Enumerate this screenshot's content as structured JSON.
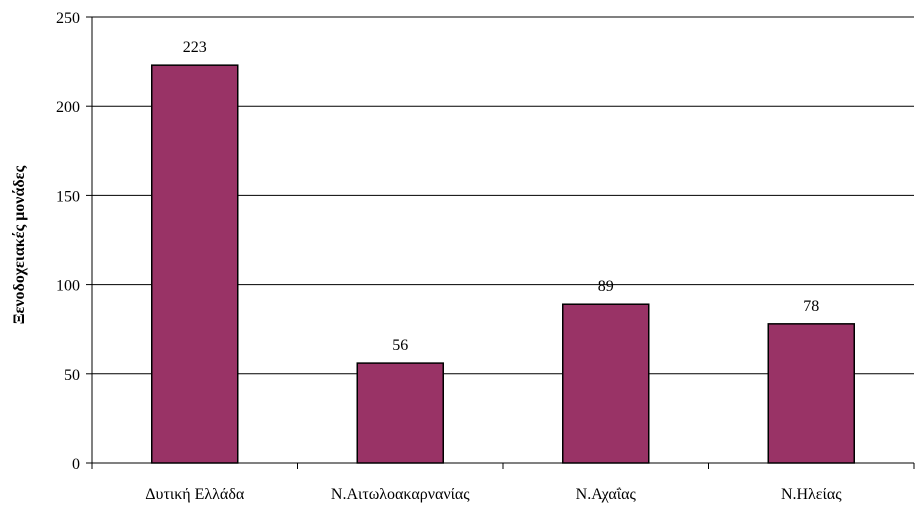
{
  "chart_data": {
    "type": "bar",
    "categories": [
      "Δυτική Ελλάδα",
      "Ν.Αιτωλοακαρνανίας",
      "Ν.Αχαΐας",
      "Ν.Ηλείας"
    ],
    "values": [
      223,
      56,
      89,
      78
    ],
    "data_labels": [
      "223",
      "56",
      "89",
      "78"
    ],
    "title": "",
    "xlabel": "",
    "ylabel": "Ξενοδοχειακές μονάδες",
    "ylim": [
      0,
      250
    ],
    "yticks": [
      0,
      50,
      100,
      150,
      200,
      250
    ],
    "ytick_labels": [
      "0",
      "50",
      "100",
      "150",
      "200",
      "250"
    ],
    "grid": true,
    "legend": "none",
    "colors": {
      "bar": "#993366",
      "bar_stroke": "#000000",
      "grid": "#000000",
      "axis": "#000000"
    }
  }
}
